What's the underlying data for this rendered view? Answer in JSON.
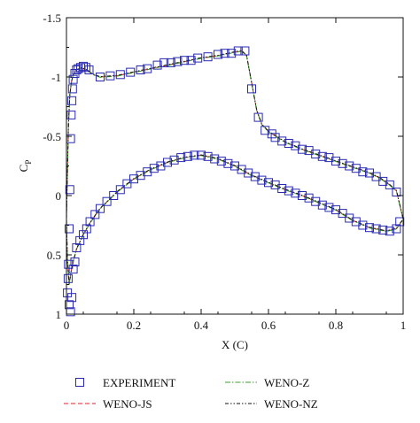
{
  "chart_data": {
    "type": "scatter",
    "title": "",
    "xlabel": "X (C)",
    "ylabel_main": "C",
    "ylabel_sub": "P",
    "xlim": [
      0,
      1
    ],
    "ylim": [
      -1.5,
      1
    ],
    "y_inverted": true,
    "grid": false,
    "legend_position": "bottom",
    "x_ticks": [
      {
        "value": 0,
        "label": "0"
      },
      {
        "value": 0.2,
        "label": "0.2"
      },
      {
        "value": 0.4,
        "label": "0.4"
      },
      {
        "value": 0.6,
        "label": "0.6"
      },
      {
        "value": 0.8,
        "label": "0.8"
      },
      {
        "value": 1,
        "label": "1"
      }
    ],
    "y_ticks": [
      {
        "value": -1.5,
        "label": "-1.5"
      },
      {
        "value": -1,
        "label": "-1"
      },
      {
        "value": -0.5,
        "label": "-0.5"
      },
      {
        "value": 0,
        "label": "0"
      },
      {
        "value": 0.5,
        "label": "0.5"
      },
      {
        "value": 1,
        "label": "1"
      }
    ],
    "series": [
      {
        "name": "EXPERIMENT",
        "kind": "markers",
        "color": "#2a2ab0",
        "upper": [
          [
            0.003,
            0.82
          ],
          [
            0.006,
            0.58
          ],
          [
            0.008,
            0.28
          ],
          [
            0.01,
            -0.05
          ],
          [
            0.012,
            -0.48
          ],
          [
            0.014,
            -0.68
          ],
          [
            0.016,
            -0.8
          ],
          [
            0.018,
            -0.9
          ],
          [
            0.02,
            -0.98
          ],
          [
            0.025,
            -1.03
          ],
          [
            0.03,
            -1.06
          ],
          [
            0.035,
            -1.07
          ],
          [
            0.042,
            -1.08
          ],
          [
            0.05,
            -1.09
          ],
          [
            0.058,
            -1.08
          ],
          [
            0.067,
            -1.06
          ],
          [
            0.1,
            -1.0
          ],
          [
            0.13,
            -1.01
          ],
          [
            0.16,
            -1.02
          ],
          [
            0.19,
            -1.04
          ],
          [
            0.22,
            -1.06
          ],
          [
            0.24,
            -1.07
          ],
          [
            0.27,
            -1.1
          ],
          [
            0.29,
            -1.12
          ],
          [
            0.31,
            -1.12
          ],
          [
            0.33,
            -1.13
          ],
          [
            0.35,
            -1.14
          ],
          [
            0.37,
            -1.14
          ],
          [
            0.39,
            -1.16
          ],
          [
            0.42,
            -1.17
          ],
          [
            0.45,
            -1.19
          ],
          [
            0.47,
            -1.2
          ],
          [
            0.49,
            -1.2
          ],
          [
            0.51,
            -1.22
          ],
          [
            0.53,
            -1.22
          ],
          [
            0.55,
            -0.9
          ],
          [
            0.57,
            -0.66
          ],
          [
            0.59,
            -0.55
          ],
          [
            0.61,
            -0.52
          ],
          [
            0.62,
            -0.49
          ],
          [
            0.64,
            -0.46
          ],
          [
            0.66,
            -0.44
          ],
          [
            0.68,
            -0.42
          ],
          [
            0.7,
            -0.39
          ],
          [
            0.72,
            -0.38
          ],
          [
            0.74,
            -0.35
          ],
          [
            0.76,
            -0.33
          ],
          [
            0.78,
            -0.32
          ],
          [
            0.8,
            -0.29
          ],
          [
            0.82,
            -0.27
          ],
          [
            0.84,
            -0.25
          ],
          [
            0.86,
            -0.23
          ],
          [
            0.88,
            -0.2
          ],
          [
            0.9,
            -0.19
          ],
          [
            0.92,
            -0.16
          ],
          [
            0.94,
            -0.12
          ],
          [
            0.96,
            -0.09
          ],
          [
            0.98,
            -0.03
          ]
        ],
        "lower": [
          [
            0.005,
            0.7
          ],
          [
            0.008,
            0.92
          ],
          [
            0.012,
            0.98
          ],
          [
            0.016,
            0.86
          ],
          [
            0.02,
            0.62
          ],
          [
            0.025,
            0.56
          ],
          [
            0.03,
            0.44
          ],
          [
            0.04,
            0.38
          ],
          [
            0.05,
            0.33
          ],
          [
            0.06,
            0.28
          ],
          [
            0.07,
            0.22
          ],
          [
            0.085,
            0.16
          ],
          [
            0.1,
            0.11
          ],
          [
            0.12,
            0.05
          ],
          [
            0.14,
            0.0
          ],
          [
            0.16,
            -0.05
          ],
          [
            0.18,
            -0.1
          ],
          [
            0.2,
            -0.14
          ],
          [
            0.22,
            -0.17
          ],
          [
            0.24,
            -0.2
          ],
          [
            0.26,
            -0.23
          ],
          [
            0.28,
            -0.25
          ],
          [
            0.3,
            -0.28
          ],
          [
            0.32,
            -0.3
          ],
          [
            0.34,
            -0.32
          ],
          [
            0.36,
            -0.33
          ],
          [
            0.38,
            -0.34
          ],
          [
            0.4,
            -0.34
          ],
          [
            0.42,
            -0.33
          ],
          [
            0.44,
            -0.31
          ],
          [
            0.46,
            -0.29
          ],
          [
            0.48,
            -0.27
          ],
          [
            0.5,
            -0.25
          ],
          [
            0.52,
            -0.22
          ],
          [
            0.54,
            -0.19
          ],
          [
            0.56,
            -0.16
          ],
          [
            0.58,
            -0.13
          ],
          [
            0.6,
            -0.11
          ],
          [
            0.62,
            -0.09
          ],
          [
            0.64,
            -0.06
          ],
          [
            0.66,
            -0.04
          ],
          [
            0.68,
            -0.02
          ],
          [
            0.7,
            0.0
          ],
          [
            0.72,
            0.02
          ],
          [
            0.74,
            0.05
          ],
          [
            0.76,
            0.08
          ],
          [
            0.78,
            0.1
          ],
          [
            0.8,
            0.12
          ],
          [
            0.82,
            0.15
          ],
          [
            0.84,
            0.19
          ],
          [
            0.86,
            0.22
          ],
          [
            0.88,
            0.25
          ],
          [
            0.9,
            0.27
          ],
          [
            0.92,
            0.28
          ],
          [
            0.94,
            0.29
          ],
          [
            0.96,
            0.3
          ],
          [
            0.98,
            0.28
          ],
          [
            0.99,
            0.22
          ]
        ]
      },
      {
        "name": "WENO-JS",
        "kind": "line",
        "color": "#d42020",
        "dash": "5,3"
      },
      {
        "name": "WENO-Z",
        "kind": "line",
        "color": "#3aa02a",
        "dash": "6,2,1.5,2"
      },
      {
        "name": "WENO-NZ",
        "kind": "line",
        "color": "#111111",
        "dash": "4,2,1.5,2,1.5,2"
      }
    ],
    "simulation_curve": {
      "upper": [
        [
          0,
          0.2
        ],
        [
          0.003,
          -0.2
        ],
        [
          0.006,
          -0.6
        ],
        [
          0.01,
          -0.85
        ],
        [
          0.015,
          -0.96
        ],
        [
          0.02,
          -1.02
        ],
        [
          0.03,
          -1.06
        ],
        [
          0.045,
          -1.075
        ],
        [
          0.06,
          -1.06
        ],
        [
          0.08,
          -1.02
        ],
        [
          0.1,
          -1.0
        ],
        [
          0.15,
          -1.01
        ],
        [
          0.2,
          -1.04
        ],
        [
          0.25,
          -1.07
        ],
        [
          0.3,
          -1.1
        ],
        [
          0.35,
          -1.13
        ],
        [
          0.4,
          -1.16
        ],
        [
          0.45,
          -1.18
        ],
        [
          0.5,
          -1.21
        ],
        [
          0.52,
          -1.22
        ],
        [
          0.535,
          -1.18
        ],
        [
          0.55,
          -0.95
        ],
        [
          0.565,
          -0.72
        ],
        [
          0.58,
          -0.6
        ],
        [
          0.6,
          -0.54
        ],
        [
          0.65,
          -0.45
        ],
        [
          0.7,
          -0.39
        ],
        [
          0.75,
          -0.34
        ],
        [
          0.8,
          -0.29
        ],
        [
          0.85,
          -0.24
        ],
        [
          0.9,
          -0.19
        ],
        [
          0.93,
          -0.15
        ],
        [
          0.96,
          -0.09
        ],
        [
          0.98,
          -0.04
        ],
        [
          1.0,
          0.2
        ]
      ],
      "lower": [
        [
          0,
          0.2
        ],
        [
          0.003,
          0.55
        ],
        [
          0.008,
          0.75
        ],
        [
          0.015,
          0.62
        ],
        [
          0.02,
          0.56
        ],
        [
          0.03,
          0.45
        ],
        [
          0.05,
          0.33
        ],
        [
          0.07,
          0.23
        ],
        [
          0.1,
          0.11
        ],
        [
          0.15,
          -0.03
        ],
        [
          0.2,
          -0.14
        ],
        [
          0.25,
          -0.22
        ],
        [
          0.3,
          -0.28
        ],
        [
          0.35,
          -0.32
        ],
        [
          0.4,
          -0.34
        ],
        [
          0.45,
          -0.31
        ],
        [
          0.5,
          -0.25
        ],
        [
          0.55,
          -0.17
        ],
        [
          0.6,
          -0.11
        ],
        [
          0.65,
          -0.05
        ],
        [
          0.7,
          0.0
        ],
        [
          0.75,
          0.06
        ],
        [
          0.8,
          0.12
        ],
        [
          0.85,
          0.21
        ],
        [
          0.9,
          0.27
        ],
        [
          0.95,
          0.3
        ],
        [
          0.98,
          0.28
        ],
        [
          1.0,
          0.2
        ]
      ]
    }
  }
}
